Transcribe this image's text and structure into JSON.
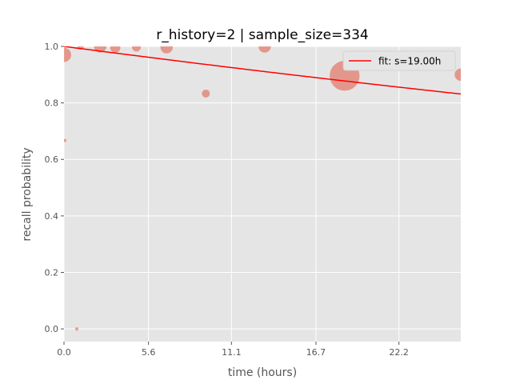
{
  "chart_data": {
    "type": "scatter",
    "title": "r_history=2 | sample_size=334",
    "xlabel": "time (hours)",
    "ylabel": "recall probability",
    "xlim": [
      0,
      26.3
    ],
    "ylim": [
      -0.045,
      1.0
    ],
    "xticks": [
      0.0,
      5.6,
      11.1,
      16.7,
      22.2
    ],
    "xtick_labels": [
      "0.0",
      "5.6",
      "11.1",
      "16.7",
      "22.2"
    ],
    "yticks": [
      0.0,
      0.2,
      0.4,
      0.6,
      0.8,
      1.0
    ],
    "ytick_labels": [
      "0.0",
      "0.2",
      "0.4",
      "0.6",
      "0.8",
      "1.0"
    ],
    "grid": true,
    "legend": {
      "placement": "top-right",
      "entries": [
        "fit: s=19.00h"
      ]
    },
    "colors": {
      "points": "#e24a33",
      "fit": "#ff0000",
      "background": "#e5e5e5",
      "grid": "#ffffff"
    },
    "points": [
      {
        "x": 0.0,
        "y": 0.97,
        "size": 80
      },
      {
        "x": 0.05,
        "y": 0.667,
        "size": 4
      },
      {
        "x": 0.85,
        "y": 0.0,
        "size": 4
      },
      {
        "x": 1.1,
        "y": 1.0,
        "size": 16
      },
      {
        "x": 2.4,
        "y": 1.0,
        "size": 60
      },
      {
        "x": 3.4,
        "y": 0.995,
        "size": 40
      },
      {
        "x": 4.8,
        "y": 0.997,
        "size": 30
      },
      {
        "x": 6.8,
        "y": 0.997,
        "size": 60
      },
      {
        "x": 9.4,
        "y": 0.833,
        "size": 25
      },
      {
        "x": 13.3,
        "y": 1.0,
        "size": 60
      },
      {
        "x": 18.6,
        "y": 0.896,
        "size": 350
      },
      {
        "x": 26.3,
        "y": 0.9,
        "size": 60
      }
    ],
    "fit": {
      "name": "fit: s=19.00h",
      "s_hours": 19.0,
      "model": "exp"
    }
  }
}
